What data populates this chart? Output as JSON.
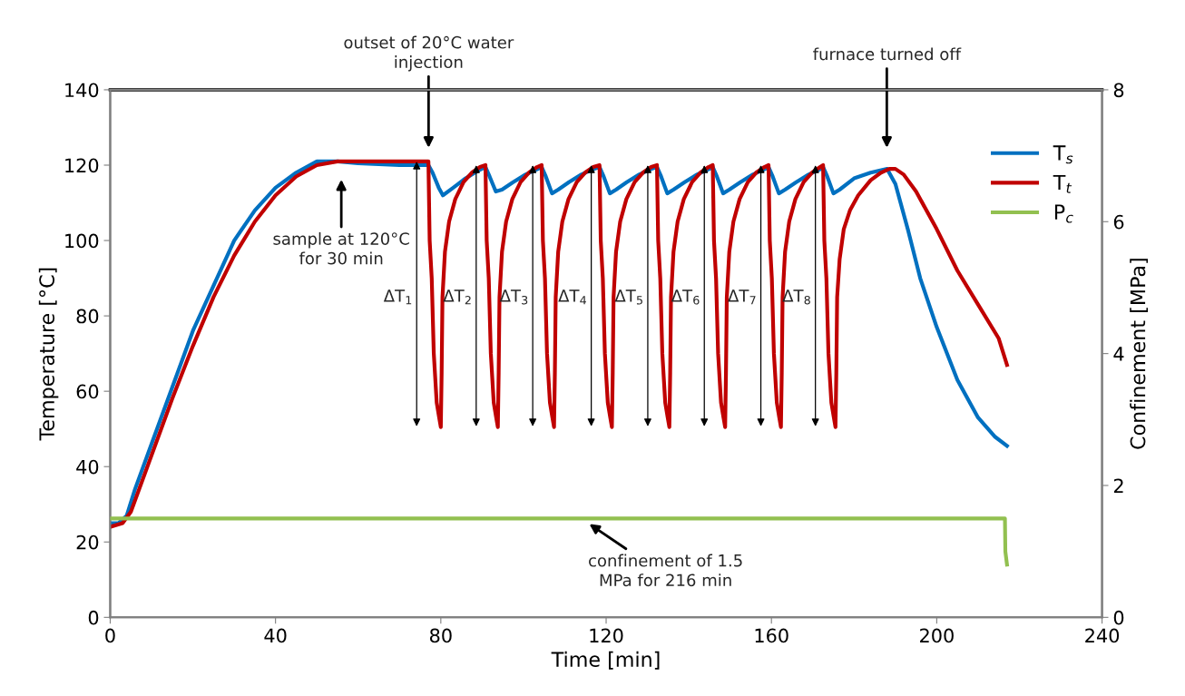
{
  "chart_data": {
    "type": "line",
    "xlabel": "Time [min]",
    "ylabel": "Temperature [°C]",
    "y2label": "Confinement [MPa]",
    "xlim": [
      0,
      240
    ],
    "xticks": [
      0,
      40,
      80,
      120,
      160,
      200,
      240
    ],
    "ylim": [
      0,
      140
    ],
    "yticks": [
      0,
      20,
      40,
      60,
      80,
      100,
      120,
      140
    ],
    "y2lim": [
      0,
      8
    ],
    "y2ticks": [
      0,
      2,
      4,
      6,
      8
    ],
    "grid": false,
    "legend": "top right",
    "marker": "none",
    "line_style": "solid",
    "series": [
      {
        "name": "T$_{s}$",
        "color": "#0070c0",
        "x": [
          0,
          2,
          4,
          6,
          10,
          15,
          20,
          25,
          30,
          35,
          40,
          45,
          50,
          55,
          60,
          70,
          77,
          78,
          79.5,
          80.5,
          83,
          86,
          89,
          90.8,
          91.8,
          93.3,
          94.8,
          97.5,
          100.5,
          103.5,
          104.4,
          105.4,
          106.9,
          108.4,
          111,
          114,
          117,
          118.4,
          119.4,
          120.9,
          122.4,
          125,
          128,
          131,
          132.3,
          133.3,
          134.8,
          136.3,
          139,
          142,
          145,
          145.8,
          146.8,
          148.3,
          149.8,
          152.5,
          155.5,
          158.5,
          159.3,
          160.3,
          161.8,
          163.3,
          166,
          169,
          172,
          172.5,
          173.5,
          175,
          176.5,
          180,
          184,
          188,
          190,
          193,
          196,
          200,
          205,
          210,
          214,
          217
        ],
        "values": [
          25,
          25,
          27,
          34,
          46,
          61,
          76,
          88,
          100,
          108,
          114,
          118,
          121,
          121,
          120.5,
          120,
          120,
          118,
          114,
          112,
          114,
          116.5,
          118.5,
          119.5,
          117,
          113,
          113.5,
          115.5,
          117.5,
          119,
          119.5,
          117,
          112.5,
          113.5,
          115.5,
          117.5,
          119,
          119.5,
          117,
          112.5,
          113.5,
          115.5,
          117.5,
          119,
          119.5,
          117,
          112.5,
          113.5,
          115.5,
          117.5,
          119,
          119.5,
          117,
          112.5,
          113.5,
          115.5,
          117.5,
          119,
          119.5,
          117,
          112.5,
          113.5,
          115.5,
          117.5,
          119,
          119.5,
          117,
          112.5,
          113.5,
          116.5,
          118,
          119,
          115,
          103,
          90,
          77,
          63,
          53,
          48,
          45.5
        ]
      },
      {
        "name": "T$_{t}$",
        "color": "#c00000",
        "x": [
          0,
          3,
          5,
          10,
          15,
          20,
          25,
          30,
          35,
          40,
          45,
          50,
          55,
          65,
          77,
          77.3,
          77.8,
          78.3,
          79,
          79.6,
          80,
          80.2,
          80.4,
          81,
          82,
          83.5,
          85.5,
          87.5,
          89.5,
          90.8,
          91.1,
          91.6,
          92.1,
          92.8,
          93.4,
          93.8,
          94,
          94.2,
          94.8,
          95.8,
          97.3,
          99.3,
          101.3,
          103.3,
          104.4,
          104.7,
          105.2,
          105.7,
          106.4,
          107,
          107.4,
          107.6,
          107.8,
          108.4,
          109.4,
          110.9,
          112.9,
          114.9,
          116.9,
          118.4,
          118.7,
          119.2,
          119.7,
          120.4,
          121,
          121.4,
          121.6,
          121.8,
          122.4,
          123.4,
          124.9,
          126.9,
          128.9,
          130.9,
          132.3,
          132.6,
          133.1,
          133.6,
          134.3,
          134.9,
          135.3,
          135.5,
          135.7,
          136.3,
          137.3,
          138.8,
          140.8,
          142.8,
          144.8,
          145.8,
          146.1,
          146.6,
          147.1,
          147.8,
          148.4,
          148.8,
          149,
          149.2,
          149.8,
          150.8,
          152.3,
          154.3,
          156.3,
          158.3,
          159.3,
          159.6,
          160.1,
          160.6,
          161.3,
          161.9,
          162.3,
          162.5,
          162.7,
          163.3,
          164.3,
          165.8,
          167.8,
          169.8,
          171.8,
          172.5,
          172.8,
          173.3,
          173.8,
          174.5,
          175.1,
          175.5,
          175.7,
          175.9,
          176.5,
          177.5,
          179,
          181,
          184,
          186.5,
          188.5,
          190,
          192,
          195,
          200,
          205,
          210,
          215,
          217
        ],
        "values": [
          24,
          25,
          28,
          43,
          58,
          72,
          85,
          96,
          105,
          112,
          117,
          120,
          121,
          121,
          121,
          100,
          90,
          70,
          57,
          53,
          50.5,
          65,
          85,
          97,
          105,
          111,
          115.5,
          118,
          119.5,
          120,
          100,
          90,
          70,
          57,
          53,
          50.5,
          65,
          85,
          97,
          105,
          111,
          115.5,
          118,
          119.5,
          120,
          100,
          90,
          70,
          57,
          53,
          50.5,
          65,
          85,
          97,
          105,
          111,
          115.5,
          118,
          119.5,
          120,
          100,
          90,
          70,
          57,
          53,
          50.5,
          65,
          85,
          97,
          105,
          111,
          115.5,
          118,
          119.5,
          120,
          100,
          90,
          70,
          57,
          53,
          50.5,
          65,
          85,
          97,
          105,
          111,
          115.5,
          118,
          119.5,
          120,
          100,
          90,
          70,
          57,
          53,
          50.5,
          65,
          85,
          97,
          105,
          111,
          115.5,
          118,
          119.5,
          120,
          100,
          90,
          70,
          57,
          53,
          50.5,
          65,
          85,
          97,
          105,
          111,
          115.5,
          118,
          119.5,
          120,
          100,
          90,
          70,
          57,
          53,
          50.5,
          65,
          85,
          95,
          103,
          108,
          112,
          116,
          118,
          119,
          119,
          117.5,
          113,
          103,
          92,
          83,
          74,
          67
        ]
      },
      {
        "name": "P$_{c}$",
        "color": "#92c050",
        "axis": "y2",
        "x": [
          0,
          216.5,
          216.6,
          217
        ],
        "values": [
          1.5,
          1.5,
          1.0,
          0.8
        ]
      }
    ],
    "annotations": [
      "outset of 20°C water injection",
      "furnace turned off",
      "sample at 120°C for 30 min",
      "confinement of 1.5 MPa for 216 min",
      "ΔT$_{1}$",
      "ΔT$_{2}$",
      "ΔT$_{3}$",
      "ΔT$_{4}$",
      "ΔT$_{5}$",
      "ΔT$_{6}$",
      "ΔT$_{7}$",
      "ΔT$_{8}$"
    ]
  }
}
